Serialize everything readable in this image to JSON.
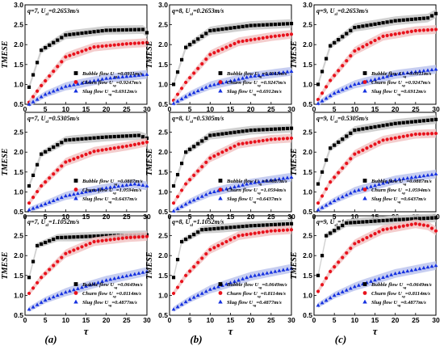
{
  "figure": {
    "column_labels": [
      "(a)",
      "(b)",
      "(c)"
    ],
    "series_styles": [
      {
        "marker": "square",
        "color": "#000000",
        "band": "#c8c8c8"
      },
      {
        "marker": "circle",
        "color": "#e8121c",
        "band": "#f2c4c4"
      },
      {
        "marker": "triangle",
        "color": "#1531e0",
        "band": "#bdc6ef"
      }
    ]
  },
  "chart_data": [
    {
      "type": "scatter",
      "panel": "a1",
      "title": "q=7, U_sl=0.2653m/s",
      "ylabel": "TMESE",
      "xlabel": "",
      "ylim": [
        0.5,
        3.0
      ],
      "xlim": [
        0,
        30
      ],
      "yticks": [
        0.5,
        1.0,
        1.5,
        2.0,
        2.5,
        3.0
      ],
      "xticks": [
        0,
        5,
        10,
        15,
        20,
        25,
        30
      ],
      "legend_position": "bottom-right",
      "series": [
        {
          "name": "Bubble flow U_sg=0.0911m/s",
          "curve": [
            [
              1,
              0.93
            ],
            [
              4,
              1.86
            ],
            [
              10,
              2.24
            ],
            [
              20,
              2.36
            ],
            [
              29,
              2.38
            ],
            [
              30,
              2.3
            ]
          ]
        },
        {
          "name": "Churn flow U_sg=0.9247m/s",
          "curve": [
            [
              1,
              0.55
            ],
            [
              4,
              0.97
            ],
            [
              10,
              1.69
            ],
            [
              17,
              1.94
            ],
            [
              25,
              2.02
            ],
            [
              30,
              2.05
            ]
          ]
        },
        {
          "name": "Slug flow U_sg=0.6912m/s",
          "curve": [
            [
              1,
              0.5
            ],
            [
              5,
              0.75
            ],
            [
              10,
              0.95
            ],
            [
              20,
              1.15
            ],
            [
              30,
              1.25
            ]
          ]
        }
      ]
    },
    {
      "type": "scatter",
      "panel": "b1",
      "title": "q=8, U_sl=0.2653m/s",
      "ylabel": "TMESE",
      "xlabel": "",
      "ylim": [
        0.5,
        3.0
      ],
      "xlim": [
        0,
        30
      ],
      "yticks": [
        0.5,
        1.0,
        1.5,
        2.0,
        2.5,
        3.0
      ],
      "xticks": [
        0,
        5,
        10,
        15,
        20,
        25,
        30
      ],
      "legend_position": "bottom-right",
      "series": [
        {
          "name": "Bubble flow U_sg=0.0911m/s",
          "curve": [
            [
              1,
              1.0
            ],
            [
              4,
              1.93
            ],
            [
              10,
              2.35
            ],
            [
              20,
              2.48
            ],
            [
              30,
              2.53
            ]
          ]
        },
        {
          "name": "Churn flow U_sg=0.9247m/s",
          "curve": [
            [
              1,
              0.6
            ],
            [
              4,
              1.05
            ],
            [
              10,
              1.75
            ],
            [
              17,
              2.07
            ],
            [
              25,
              2.2
            ],
            [
              30,
              2.26
            ]
          ]
        },
        {
          "name": "Slug flow U_sg=0.6912m/s",
          "curve": [
            [
              1,
              0.52
            ],
            [
              5,
              0.75
            ],
            [
              10,
              0.97
            ],
            [
              20,
              1.2
            ],
            [
              30,
              1.33
            ]
          ]
        }
      ]
    },
    {
      "type": "scatter",
      "panel": "c1",
      "title": "q=9, U_sl=0.2653m/s",
      "ylabel": "TMESE",
      "xlabel": "",
      "ylim": [
        0.5,
        3.0
      ],
      "xlim": [
        0,
        30
      ],
      "yticks": [
        0.5,
        1.0,
        1.5,
        2.0,
        2.5,
        3.0
      ],
      "xticks": [
        0,
        5,
        10,
        15,
        20,
        25,
        30
      ],
      "legend_position": "bottom-right",
      "series": [
        {
          "name": "Bubble flow U_sg=0.0911m/s",
          "curve": [
            [
              1,
              1.0
            ],
            [
              4,
              1.97
            ],
            [
              10,
              2.43
            ],
            [
              20,
              2.6
            ],
            [
              28,
              2.67
            ],
            [
              30,
              2.78
            ]
          ]
        },
        {
          "name": "Churn flow U_sg=0.9247m/s",
          "curve": [
            [
              1,
              0.62
            ],
            [
              4,
              1.1
            ],
            [
              10,
              1.84
            ],
            [
              17,
              2.21
            ],
            [
              25,
              2.35
            ],
            [
              30,
              2.38
            ]
          ]
        },
        {
          "name": "Slug flow U_sg=0.6912m/s",
          "curve": [
            [
              1,
              0.52
            ],
            [
              5,
              0.78
            ],
            [
              10,
              1.0
            ],
            [
              20,
              1.25
            ],
            [
              30,
              1.38
            ]
          ]
        }
      ]
    },
    {
      "type": "scatter",
      "panel": "a2",
      "title": "q=7, U_sl=0.5305m/s",
      "ylabel": "TMESE",
      "xlabel": "",
      "ylim": [
        0.5,
        3.0
      ],
      "xlim": [
        0,
        30
      ],
      "yticks": [
        0.5,
        1.0,
        1.5,
        2.0,
        2.5,
        3.0
      ],
      "xticks": [
        0,
        5,
        10,
        15,
        20,
        25,
        30
      ],
      "legend_position": "bottom-right",
      "series": [
        {
          "name": "Bubble flow U_sg=0.0887m/s",
          "curve": [
            [
              1,
              1.15
            ],
            [
              4,
              1.95
            ],
            [
              10,
              2.3
            ],
            [
              20,
              2.38
            ],
            [
              28,
              2.42
            ],
            [
              30,
              2.35
            ]
          ]
        },
        {
          "name": "Churn flow U_sg=1.0594m/s",
          "curve": [
            [
              1,
              0.72
            ],
            [
              4,
              1.15
            ],
            [
              10,
              1.75
            ],
            [
              17,
              2.02
            ],
            [
              25,
              2.15
            ],
            [
              30,
              2.25
            ]
          ]
        },
        {
          "name": "Slug flow U_sg=0.6437m/s",
          "curve": [
            [
              1,
              0.55
            ],
            [
              5,
              0.7
            ],
            [
              10,
              0.9
            ],
            [
              20,
              1.1
            ],
            [
              27,
              1.2
            ],
            [
              30,
              1.15
            ]
          ]
        }
      ]
    },
    {
      "type": "scatter",
      "panel": "b2",
      "title": "q=8, U_sl=0.5305m/s",
      "ylabel": "TMESE",
      "xlabel": "",
      "ylim": [
        0.5,
        3.0
      ],
      "xlim": [
        0,
        30
      ],
      "yticks": [
        0.5,
        1.0,
        1.5,
        2.0,
        2.5,
        3.0
      ],
      "xticks": [
        0,
        5,
        10,
        15,
        20,
        25,
        30
      ],
      "legend_position": "bottom-right",
      "series": [
        {
          "name": "Bubble flow U_sg=0.0887m/s",
          "curve": [
            [
              1,
              1.15
            ],
            [
              4,
              2.0
            ],
            [
              10,
              2.42
            ],
            [
              20,
              2.55
            ],
            [
              30,
              2.6
            ]
          ]
        },
        {
          "name": "Churn flow U_sg=1.0594m/s",
          "curve": [
            [
              1,
              0.72
            ],
            [
              4,
              1.2
            ],
            [
              10,
              1.85
            ],
            [
              17,
              2.2
            ],
            [
              25,
              2.32
            ],
            [
              30,
              2.35
            ]
          ]
        },
        {
          "name": "Slug flow U_sg=0.6437m/s",
          "curve": [
            [
              1,
              0.52
            ],
            [
              5,
              0.75
            ],
            [
              10,
              0.98
            ],
            [
              20,
              1.22
            ],
            [
              30,
              1.37
            ]
          ]
        }
      ]
    },
    {
      "type": "scatter",
      "panel": "c2",
      "title": "q=9, U_sl=0.5305m/s",
      "ylabel": "TMESE",
      "xlabel": "",
      "ylim": [
        0.5,
        3.0
      ],
      "xlim": [
        0,
        30
      ],
      "yticks": [
        0.5,
        1.0,
        1.5,
        2.0,
        2.5,
        3.0
      ],
      "xticks": [
        0,
        5,
        10,
        15,
        20,
        25,
        30
      ],
      "legend_position": "bottom-right",
      "series": [
        {
          "name": "Bubble flow U_sg=0.0887m/s",
          "curve": [
            [
              1,
              1.2
            ],
            [
              4,
              2.1
            ],
            [
              10,
              2.55
            ],
            [
              20,
              2.72
            ],
            [
              30,
              2.82
            ]
          ]
        },
        {
          "name": "Churn flow U_sg=1.0594m/s",
          "curve": [
            [
              1,
              0.72
            ],
            [
              4,
              1.25
            ],
            [
              10,
              1.95
            ],
            [
              17,
              2.3
            ],
            [
              25,
              2.45
            ],
            [
              30,
              2.47
            ]
          ]
        },
        {
          "name": "Slug flow U_sg=0.6437m/s",
          "curve": [
            [
              1,
              0.55
            ],
            [
              5,
              0.78
            ],
            [
              10,
              1.02
            ],
            [
              20,
              1.3
            ],
            [
              30,
              1.45
            ]
          ]
        }
      ]
    },
    {
      "type": "scatter",
      "panel": "a3",
      "title": "q=7, U_sl=1.1052m/s",
      "ylabel": "TMESE",
      "xlabel": "τ",
      "ylim": [
        0.5,
        3.0
      ],
      "xlim": [
        0,
        30
      ],
      "yticks": [
        0.5,
        1.0,
        1.5,
        2.0,
        2.5,
        3.0
      ],
      "xticks": [
        0,
        5,
        10,
        15,
        20,
        25,
        30
      ],
      "legend_position": "bottom-right",
      "series": [
        {
          "name": "Bubble flow U_sg=0.0649m/s",
          "curve": [
            [
              1,
              1.45
            ],
            [
              3,
              2.25
            ],
            [
              8,
              2.45
            ],
            [
              20,
              2.5
            ],
            [
              30,
              2.52
            ]
          ]
        },
        {
          "name": "Churn flow U_sg=0.8114m/s",
          "curve": [
            [
              1,
              1.05
            ],
            [
              4,
              1.45
            ],
            [
              10,
              2.05
            ],
            [
              17,
              2.35
            ],
            [
              25,
              2.45
            ],
            [
              30,
              2.48
            ]
          ]
        },
        {
          "name": "Slug flow U_sg=0.4877m/s",
          "curve": [
            [
              1,
              0.65
            ],
            [
              5,
              0.88
            ],
            [
              10,
              1.08
            ],
            [
              20,
              1.38
            ],
            [
              30,
              1.6
            ]
          ]
        }
      ]
    },
    {
      "type": "scatter",
      "panel": "b3",
      "title": "q=8, U_sl=1.1052m/s",
      "ylabel": "TMESE",
      "xlabel": "τ",
      "ylim": [
        0.5,
        3.0
      ],
      "xlim": [
        0,
        30
      ],
      "yticks": [
        0.5,
        1.0,
        1.5,
        2.0,
        2.5,
        3.0
      ],
      "xticks": [
        0,
        5,
        10,
        15,
        20,
        25,
        30
      ],
      "legend_position": "bottom-right",
      "series": [
        {
          "name": "Bubble flow U_sg=0.0649m/s",
          "curve": [
            [
              1,
              1.45
            ],
            [
              3,
              2.35
            ],
            [
              8,
              2.65
            ],
            [
              20,
              2.75
            ],
            [
              30,
              2.8
            ]
          ]
        },
        {
          "name": "Churn flow U_sg=0.8114m/s",
          "curve": [
            [
              1,
              1.05
            ],
            [
              4,
              1.5
            ],
            [
              10,
              2.15
            ],
            [
              17,
              2.5
            ],
            [
              25,
              2.62
            ],
            [
              30,
              2.65
            ]
          ]
        },
        {
          "name": "Slug flow U_sg=0.4877m/s",
          "curve": [
            [
              1,
              0.65
            ],
            [
              5,
              0.9
            ],
            [
              10,
              1.15
            ],
            [
              20,
              1.48
            ],
            [
              30,
              1.68
            ]
          ]
        }
      ]
    },
    {
      "type": "scatter",
      "panel": "c3",
      "title": "q=9, U_sl=1.1052m/s",
      "ylabel": "TMESE",
      "xlabel": "τ",
      "ylim": [
        0.5,
        3.0
      ],
      "xlim": [
        0,
        30
      ],
      "yticks": [
        0.5,
        1.0,
        1.5,
        2.0,
        2.5,
        3.0
      ],
      "xticks": [
        0,
        5,
        10,
        15,
        20,
        25,
        30
      ],
      "legend_position": "bottom-right",
      "series": [
        {
          "name": "Bubble flow U_sg=0.0649m/s",
          "curve": [
            [
              1,
              1.5
            ],
            [
              3,
              2.5
            ],
            [
              8,
              2.82
            ],
            [
              20,
              2.9
            ],
            [
              30,
              2.95
            ]
          ]
        },
        {
          "name": "Churn flow U_sg=0.8114m/s",
          "curve": [
            [
              1,
              1.1
            ],
            [
              4,
              1.6
            ],
            [
              10,
              2.3
            ],
            [
              17,
              2.65
            ],
            [
              25,
              2.8
            ],
            [
              28,
              2.75
            ],
            [
              30,
              2.62
            ]
          ]
        },
        {
          "name": "Slug flow U_sg=0.4877m/s",
          "curve": [
            [
              1,
              0.75
            ],
            [
              5,
              1.0
            ],
            [
              10,
              1.22
            ],
            [
              20,
              1.55
            ],
            [
              30,
              1.75
            ]
          ]
        }
      ]
    }
  ]
}
